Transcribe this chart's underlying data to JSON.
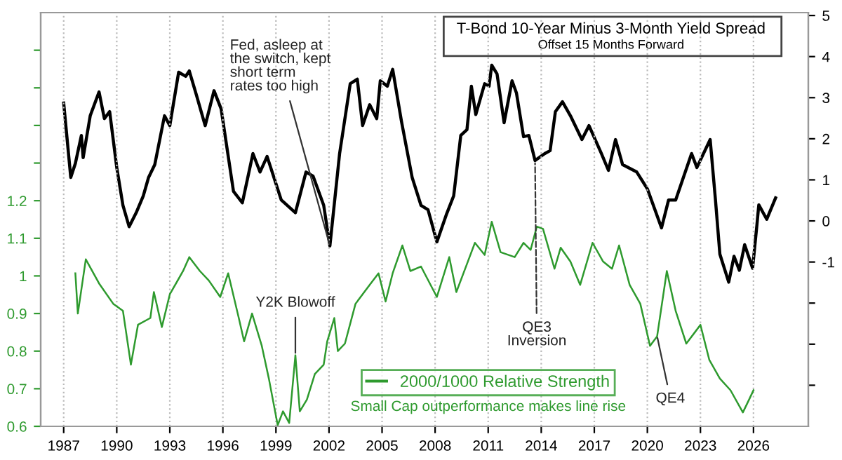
{
  "chart_data": {
    "type": "line",
    "title": "T-Bond 10-Year Minus 3-Month Yield Spread",
    "subtitle": "Offset 15 Months Forward",
    "xlim": [
      1985.7,
      2029.1
    ],
    "xticks": [
      1987,
      1990,
      1993,
      1996,
      1999,
      2002,
      2005,
      2008,
      2011,
      2014,
      2017,
      2020,
      2023,
      2026
    ],
    "ylim": [
      0.6,
      1.7
    ],
    "yticks": [
      0.6,
      0.7,
      0.8,
      0.9,
      1,
      1.1,
      1.2,
      {
        "value": 1.3,
        "label": null
      },
      {
        "value": 1.4,
        "label": null
      },
      {
        "value": 1.5,
        "label": null
      },
      {
        "value": 1.6,
        "label": null
      }
    ],
    "y2lim": [
      -5,
      5.07
    ],
    "y2ticks": [
      {
        "value": -4,
        "label": null
      },
      {
        "value": -3,
        "label": null
      },
      {
        "value": -2,
        "label": null
      },
      -1,
      0,
      1,
      2,
      3,
      4,
      5
    ],
    "grid": "x",
    "legend": "bottom",
    "line_style": "solid",
    "marker": "none",
    "series": [
      {
        "color": "#000000",
        "axis": "y2",
        "x": [
          1987.0,
          1987.4,
          1987.66,
          1988.0,
          1988.1,
          1988.5,
          1989.0,
          1989.3,
          1989.6,
          1990.0,
          1990.35,
          1990.7,
          1991.1,
          1991.5,
          1991.8,
          1992.15,
          1992.7,
          1993.0,
          1993.5,
          1993.9,
          1994.1,
          1994.5,
          1995.0,
          1995.5,
          1995.9,
          1996.6,
          1997.1,
          1997.7,
          1998.1,
          1998.5,
          1999.3,
          2000.1,
          2000.7,
          2001.1,
          2001.7,
          2002.05,
          2002.6,
          2003.2,
          2003.6,
          2003.9,
          2004.3,
          2004.7,
          2004.9,
          2005.3,
          2005.6,
          2006.1,
          2006.7,
          2007.2,
          2007.6,
          2008.1,
          2008.65,
          2009.05,
          2009.45,
          2009.8,
          2010.05,
          2010.3,
          2010.8,
          2011.05,
          2011.2,
          2011.5,
          2011.9,
          2012.35,
          2012.6,
          2013.0,
          2013.3,
          2013.65,
          2014.2,
          2014.5,
          2014.8,
          2015.2,
          2015.65,
          2016.3,
          2016.7,
          2017.4,
          2017.8,
          2018.2,
          2018.6,
          2019.4,
          2020.0,
          2020.8,
          2021.2,
          2021.6,
          2022.5,
          2022.8,
          2023.55,
          2023.85,
          2024.1,
          2024.6,
          2024.9,
          2025.2,
          2025.5,
          2025.95,
          2026.2,
          2026.3,
          2026.75,
          2027.25
        ],
        "values": [
          2.87,
          1.06,
          1.4,
          2.08,
          1.54,
          2.56,
          3.14,
          2.49,
          2.66,
          1.3,
          0.38,
          -0.14,
          0.2,
          0.61,
          1.06,
          1.37,
          2.56,
          2.32,
          3.62,
          3.52,
          3.65,
          3.07,
          2.32,
          3.17,
          2.73,
          0.72,
          0.44,
          1.64,
          1.19,
          1.57,
          0.51,
          0.2,
          1.19,
          1.09,
          0.38,
          -0.61,
          1.64,
          3.34,
          3.45,
          2.32,
          2.83,
          2.49,
          3.41,
          3.28,
          3.69,
          2.42,
          1.06,
          0.38,
          0.27,
          -0.51,
          0.17,
          0.61,
          2.08,
          2.22,
          3.28,
          2.59,
          3.34,
          3.28,
          3.79,
          3.58,
          2.39,
          3.41,
          3.11,
          2.05,
          2.08,
          1.47,
          1.64,
          1.71,
          2.66,
          2.9,
          2.56,
          1.98,
          2.32,
          1.64,
          1.23,
          1.98,
          1.37,
          1.19,
          0.78,
          -0.17,
          0.51,
          0.51,
          1.64,
          1.3,
          1.98,
          0.51,
          -0.81,
          -1.49,
          -0.86,
          -1.2,
          -0.58,
          -1.15,
          -0.07,
          0.39,
          0.04,
          0.56
        ]
      },
      {
        "name": "2000/1000 Relative Strength",
        "color": "#2e9a2e",
        "x": [
          1987.66,
          1987.8,
          1988.25,
          1989.0,
          1989.8,
          1990.35,
          1990.8,
          1991.2,
          1991.9,
          1992.1,
          1992.55,
          1993.0,
          1993.75,
          1994.1,
          1994.7,
          1995.2,
          1995.85,
          1996.3,
          1996.9,
          1997.2,
          1997.65,
          1998.2,
          1998.6,
          1999.1,
          1999.4,
          1999.75,
          2000.1,
          2000.35,
          2000.75,
          2001.2,
          2001.7,
          2001.9,
          2002.3,
          2002.5,
          2002.9,
          2003.5,
          2004.3,
          2004.8,
          2005.2,
          2005.6,
          2006.15,
          2006.6,
          2007.2,
          2008.1,
          2008.8,
          2009.2,
          2009.85,
          2010.25,
          2010.8,
          2011.2,
          2011.7,
          2012.5,
          2013.0,
          2013.4,
          2013.75,
          2014.1,
          2014.75,
          2015.1,
          2015.65,
          2016.2,
          2016.9,
          2017.5,
          2018.0,
          2018.4,
          2019.0,
          2019.6,
          2020.15,
          2020.55,
          2021.1,
          2021.6,
          2022.2,
          2022.7,
          2023.0,
          2023.5,
          2024.1,
          2024.7,
          2025.4,
          2025.75,
          2026.0
        ],
        "values": [
          1.007,
          0.9,
          1.044,
          0.98,
          0.926,
          0.907,
          0.764,
          0.87,
          0.888,
          0.957,
          0.864,
          0.951,
          1.013,
          1.05,
          1.013,
          0.988,
          0.944,
          1.007,
          0.888,
          0.826,
          0.9,
          0.814,
          0.727,
          0.603,
          0.64,
          0.609,
          0.789,
          0.64,
          0.671,
          0.739,
          0.764,
          0.826,
          0.888,
          0.8,
          0.82,
          0.926,
          0.976,
          1.007,
          0.932,
          1.007,
          1.081,
          1.013,
          1.025,
          0.944,
          1.05,
          0.957,
          1.038,
          1.088,
          1.056,
          1.144,
          1.063,
          1.05,
          1.088,
          1.069,
          1.131,
          1.125,
          1.019,
          1.075,
          1.038,
          0.976,
          1.088,
          1.038,
          1.019,
          1.081,
          0.976,
          0.926,
          0.814,
          0.839,
          1.013,
          0.907,
          0.82,
          0.851,
          0.87,
          0.777,
          0.727,
          0.696,
          0.637,
          0.671,
          0.696
        ]
      }
    ],
    "annotations": [
      {
        "text": "Fed, asleep at\nthe switch, kept\nshort term\nrates too high",
        "x": 2002.05,
        "y": 1.08
      },
      {
        "text": "Y2K Blowoff",
        "x": 2000.1,
        "y": 0.79
      },
      {
        "text": "QE3\nInversion",
        "x": 2013.65,
        "y": 1.305
      },
      {
        "text": "QE4",
        "x": 2020.55,
        "y": 0.84
      },
      "Small Cap outperformance makes line rise"
    ]
  }
}
